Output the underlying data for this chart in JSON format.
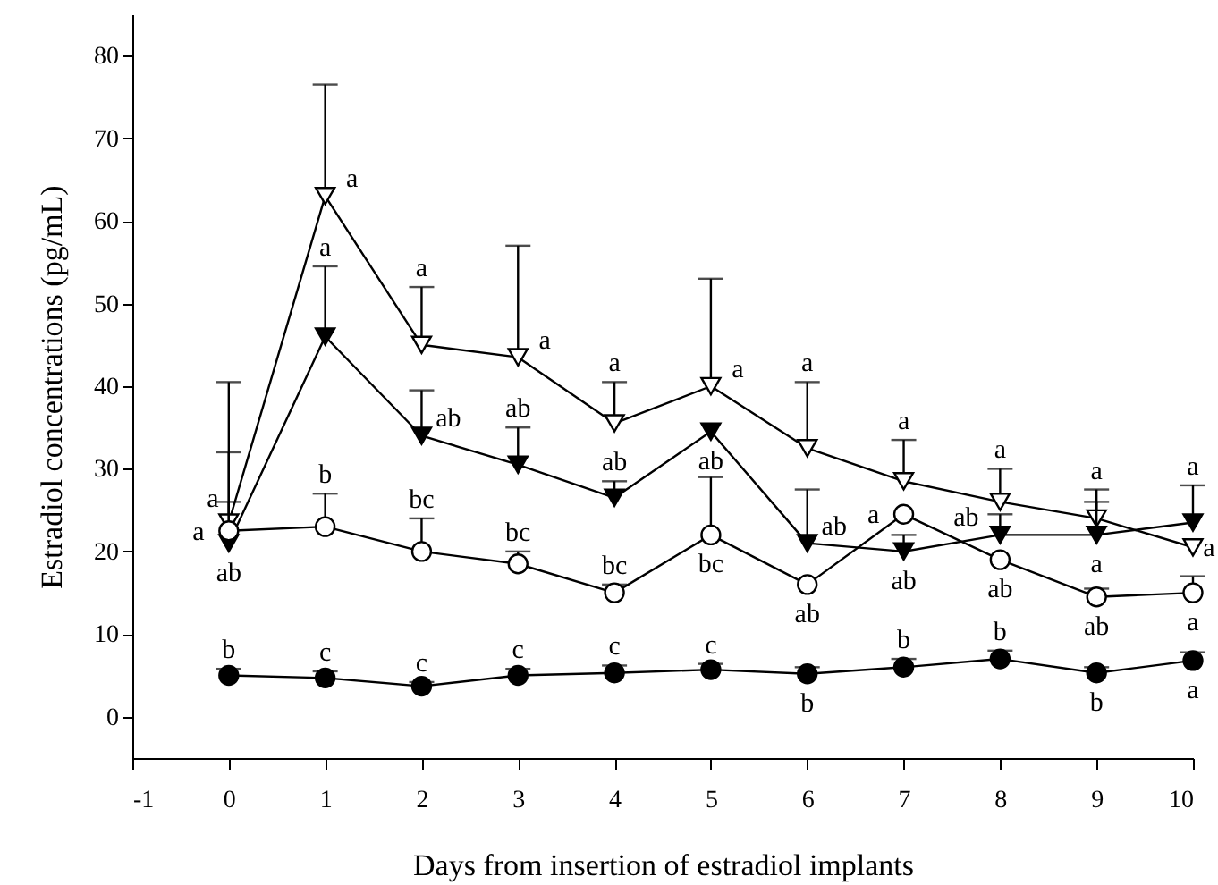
{
  "chart_data": {
    "type": "line",
    "xlabel": "Days from insertion of estradiol implants",
    "ylabel": "Estradiol concentrations (pg/mL)",
    "x": [
      0,
      1,
      2,
      3,
      4,
      5,
      6,
      7,
      8,
      9,
      10
    ],
    "xlim": [
      -1,
      10
    ],
    "xticks": [
      -1,
      0,
      1,
      2,
      3,
      4,
      5,
      6,
      7,
      8,
      9,
      10
    ],
    "ylim": [
      -5,
      85
    ],
    "yticks": [
      0,
      10,
      20,
      30,
      40,
      50,
      60,
      70,
      80
    ],
    "series": [
      {
        "color": "#000000",
        "marker": "triangle",
        "values": [
          23.5,
          63,
          45,
          43.5,
          35.5,
          40,
          32.5,
          28.5,
          26,
          24,
          20.5
        ],
        "errors": [
          [
            23.5,
            40.5
          ],
          [
            63,
            76.5
          ],
          [
            45,
            52
          ],
          [
            43.5,
            57
          ],
          [
            35.5,
            40.5
          ],
          [
            40,
            53
          ],
          [
            32.5,
            40.5
          ],
          [
            28.5,
            33.5
          ],
          [
            26,
            30
          ],
          [
            24,
            27.5
          ],
          null
        ],
        "value_labels": [
          "a",
          "a",
          "a",
          "a",
          "a",
          "a",
          "a",
          "a",
          "a",
          "a",
          "a"
        ]
      },
      {
        "color": "#000000",
        "marker": "triangle",
        "values": [
          21,
          46,
          34,
          30.5,
          26.5,
          34.5,
          21,
          20,
          22,
          22,
          23.5
        ],
        "errors": [
          [
            21,
            32
          ],
          [
            46,
            54.5
          ],
          [
            34,
            39.5
          ],
          [
            30.5,
            35
          ],
          [
            26.5,
            28.5
          ],
          null,
          [
            21,
            27.5
          ],
          [
            20,
            22
          ],
          [
            22,
            24.5
          ],
          [
            22,
            26
          ],
          [
            23.5,
            28
          ]
        ],
        "value_labels": [
          "ab",
          "a",
          "ab",
          "ab",
          "ab",
          "ab",
          "ab",
          "ab",
          "ab",
          "a",
          "a"
        ]
      },
      {
        "color": "#000000",
        "marker": "circle",
        "values": [
          22.5,
          23,
          20,
          18.5,
          15,
          22,
          16,
          24.5,
          19,
          14.5,
          15
        ],
        "errors": [
          [
            22.5,
            26
          ],
          [
            23,
            27
          ],
          [
            20,
            24
          ],
          [
            18.5,
            20
          ],
          [
            15,
            16
          ],
          [
            22,
            29
          ],
          null,
          null,
          null,
          [
            14.5,
            15.5
          ],
          [
            15,
            17
          ]
        ],
        "value_labels": [
          "a",
          "b",
          "bc",
          "bc",
          "bc",
          "bc",
          "ab",
          "a",
          "ab",
          "ab",
          "a"
        ]
      },
      {
        "color": "#000000",
        "marker": "circle",
        "values": [
          5,
          4.7,
          3.7,
          5,
          5.3,
          5.7,
          5.2,
          6,
          7,
          5.3,
          6.8
        ],
        "errors": [
          [
            5,
            5.8
          ],
          [
            4.7,
            5.5
          ],
          [
            3.7,
            4.2
          ],
          [
            5,
            5.8
          ],
          [
            5.3,
            6.2
          ],
          [
            5.7,
            6.4
          ],
          [
            5.2,
            6
          ],
          [
            6,
            7
          ],
          [
            7,
            8
          ],
          [
            5.3,
            6
          ],
          [
            6.8,
            7.8
          ]
        ],
        "value_labels": [
          "b",
          "c",
          "c",
          "c",
          "c",
          "c",
          "b",
          "b",
          "b",
          "b",
          "a"
        ]
      }
    ]
  }
}
